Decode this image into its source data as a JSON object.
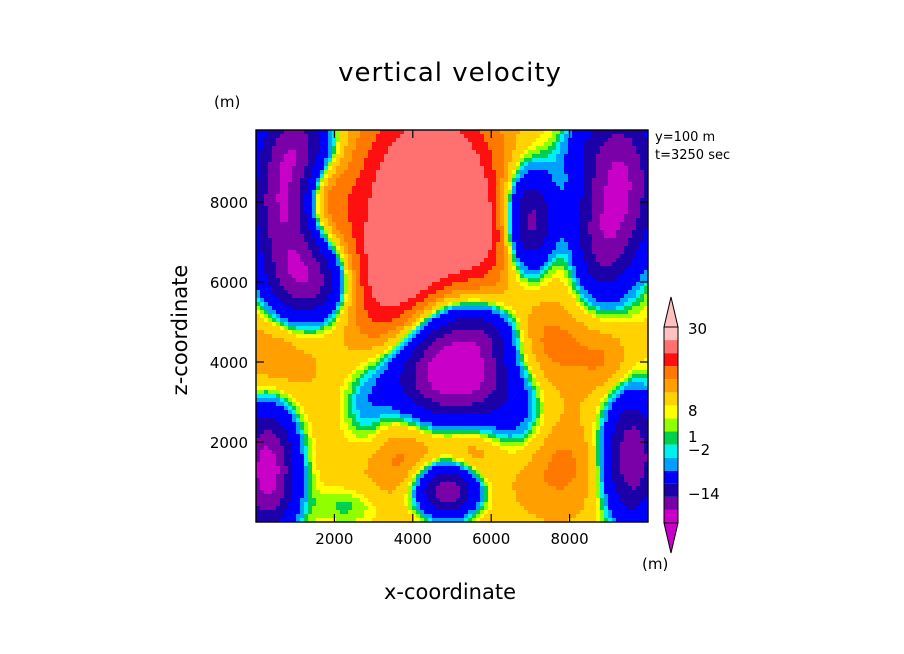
{
  "chart_data": {
    "type": "heatmap",
    "title": "vertical velocity",
    "annotations": [
      "y=100 m",
      "t=3250 sec"
    ],
    "xlabel": "x-coordinate",
    "ylabel": "z-coordinate",
    "y_unit_label": "(m)",
    "colorbar_unit_label": "(m)",
    "xlim": [
      0,
      10000
    ],
    "ylim": [
      0,
      9800
    ],
    "x_ticks": [
      2000,
      4000,
      6000,
      8000
    ],
    "y_ticks": [
      2000,
      4000,
      6000,
      8000
    ],
    "x_tick_labels": [
      "2000",
      "4000",
      "6000",
      "8000"
    ],
    "y_tick_labels": [
      "2000",
      "4000",
      "6000",
      "8000"
    ],
    "colorbar": {
      "colors": [
        "#c800c8",
        "#7a00a8",
        "#1c00a8",
        "#0000ff",
        "#00a0ff",
        "#00f0f0",
        "#00d050",
        "#90ff00",
        "#ffff00",
        "#ffd200",
        "#ffa000",
        "#ff7800",
        "#ff1010",
        "#ff7070",
        "#ffc0c0"
      ],
      "labels": [
        {
          "text": "30",
          "at_value": 30
        },
        {
          "text": "8",
          "at_value": 8
        },
        {
          "text": "1",
          "at_value": 1
        },
        {
          "text": "-2",
          "at_value": -2
        },
        {
          "text": "-14",
          "at_value": -14
        }
      ],
      "extend": "both"
    }
  }
}
